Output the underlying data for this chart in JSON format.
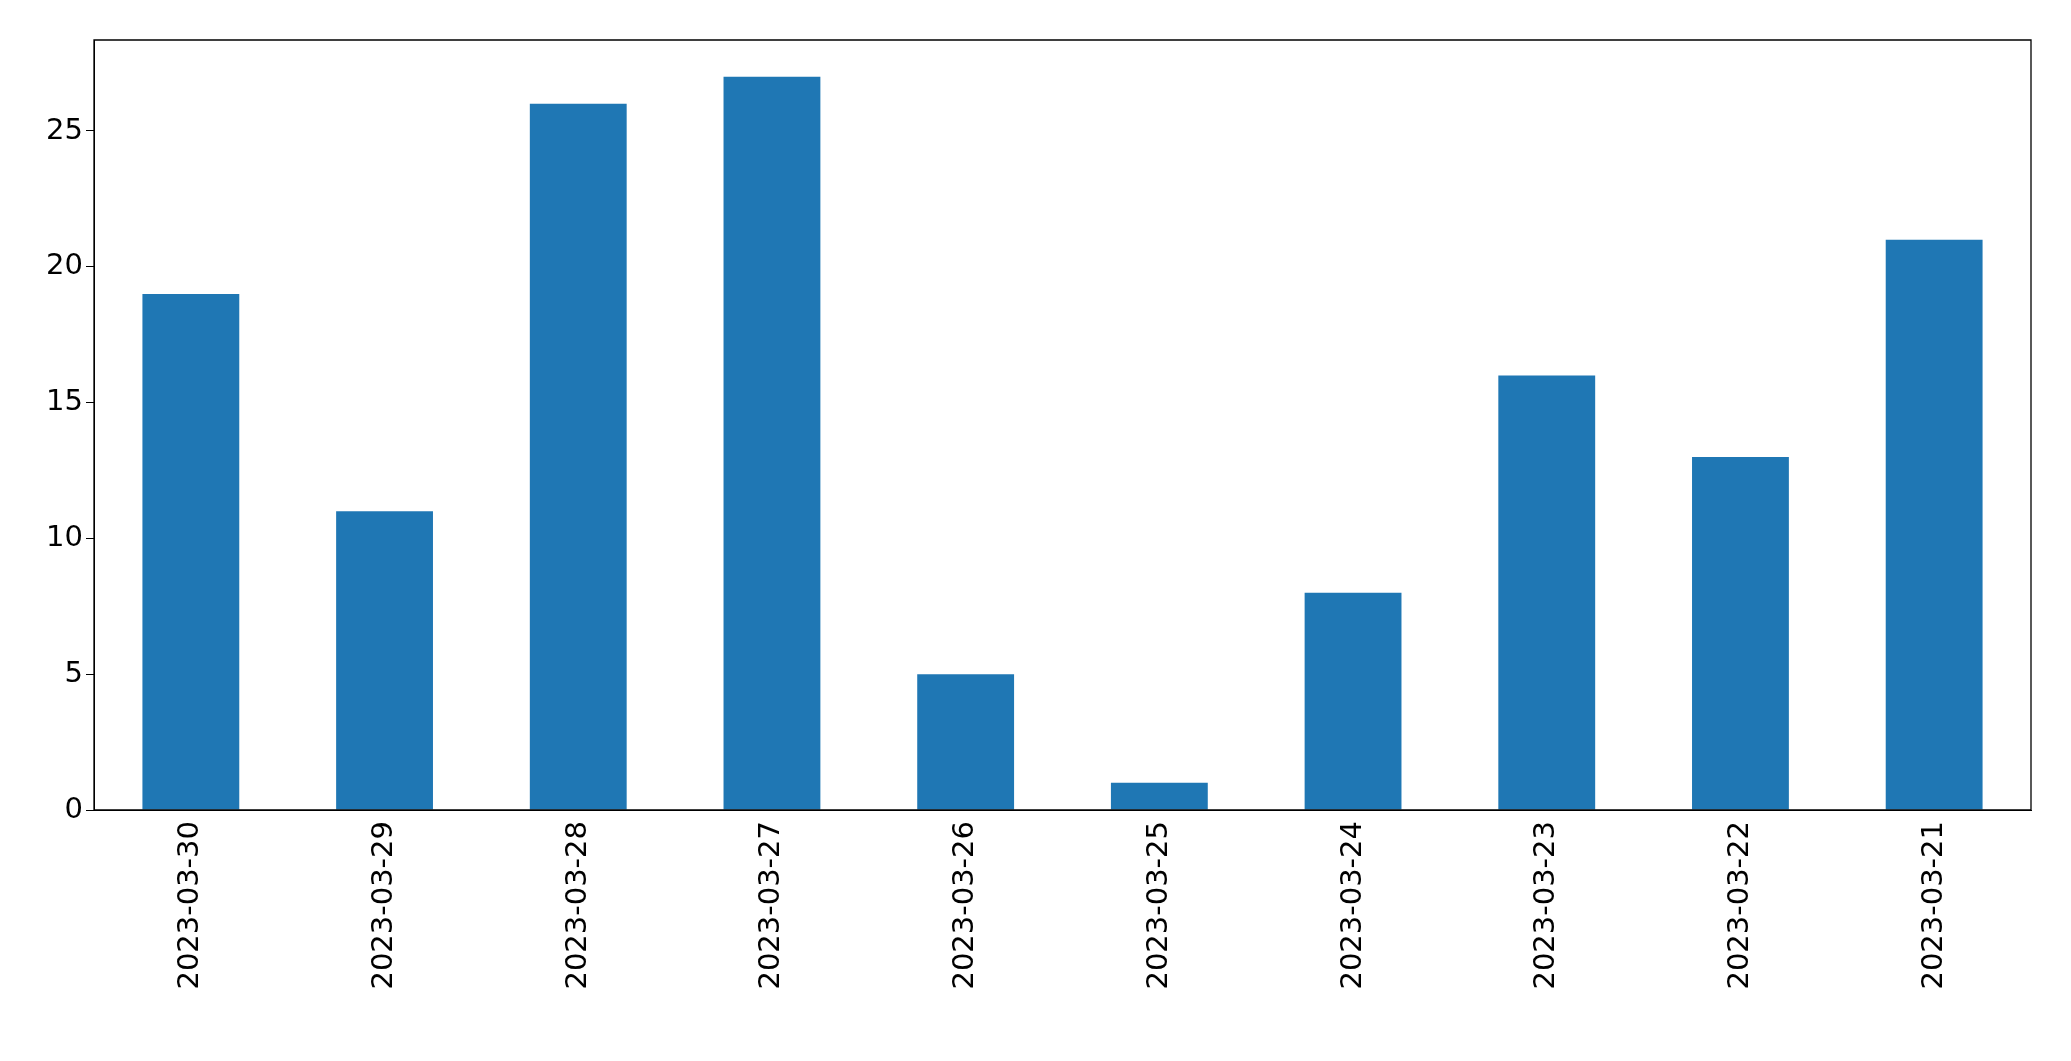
{
  "chart_data": {
    "type": "bar",
    "categories": [
      "2023-03-30",
      "2023-03-29",
      "2023-03-28",
      "2023-03-27",
      "2023-03-26",
      "2023-03-25",
      "2023-03-24",
      "2023-03-23",
      "2023-03-22",
      "2023-03-21"
    ],
    "values": [
      19,
      11,
      26,
      27,
      5,
      1,
      8,
      16,
      13,
      21
    ],
    "color": "#1f77b4",
    "ylim": [
      0,
      28.35
    ],
    "yticks": [
      0,
      5,
      10,
      15,
      20,
      25
    ],
    "grid": false,
    "legend": false
  }
}
